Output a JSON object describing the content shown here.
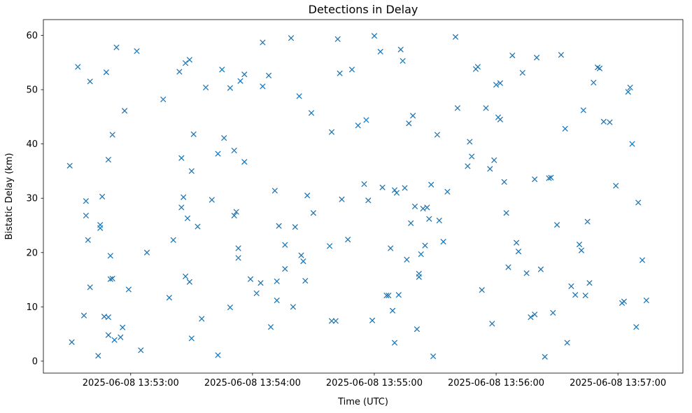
{
  "figure": {
    "title": "Detections in Delay"
  },
  "chart_data": {
    "type": "scatter",
    "title": "Detections in Delay",
    "xlabel": "Time (UTC)",
    "ylabel": "Bistatic Delay (km)",
    "marker": "x",
    "marker_color": "#1f77b4",
    "background_color": "#ffffff",
    "grid": false,
    "legend": false,
    "x_axis_note": "x values are seconds after 2025-06-08 13:50:00 UTC",
    "xlim": [
      137,
      452
    ],
    "ylim": [
      -2.2,
      62.9
    ],
    "x_ticks": [
      {
        "value": 180,
        "label": "2025-06-08 13:53:00"
      },
      {
        "value": 240,
        "label": "2025-06-08 13:54:00"
      },
      {
        "value": 300,
        "label": "2025-06-08 13:55:00"
      },
      {
        "value": 360,
        "label": "2025-06-08 13:56:00"
      },
      {
        "value": 420,
        "label": "2025-06-08 13:57:00"
      }
    ],
    "y_ticks": [
      0,
      10,
      20,
      30,
      40,
      50,
      60
    ],
    "points": [
      [
        150,
        36.0
      ],
      [
        151,
        3.5
      ],
      [
        154,
        54.2
      ],
      [
        157,
        8.4
      ],
      [
        158,
        29.5
      ],
      [
        158,
        26.8
      ],
      [
        159,
        22.3
      ],
      [
        160,
        51.5
      ],
      [
        160,
        13.6
      ],
      [
        164,
        1.0
      ],
      [
        165,
        25.1
      ],
      [
        165,
        24.5
      ],
      [
        166,
        30.3
      ],
      [
        167,
        8.2
      ],
      [
        168,
        53.2
      ],
      [
        169,
        8.1
      ],
      [
        169,
        4.8
      ],
      [
        169,
        37.1
      ],
      [
        170,
        19.4
      ],
      [
        170,
        15.1
      ],
      [
        171,
        15.2
      ],
      [
        171,
        41.7
      ],
      [
        172,
        3.9
      ],
      [
        173,
        57.8
      ],
      [
        175,
        4.4
      ],
      [
        176,
        6.2
      ],
      [
        177,
        46.1
      ],
      [
        179,
        13.2
      ],
      [
        183,
        57.1
      ],
      [
        185,
        2.0
      ],
      [
        188,
        20.0
      ],
      [
        196,
        48.2
      ],
      [
        199,
        11.7
      ],
      [
        201,
        22.3
      ],
      [
        204,
        53.3
      ],
      [
        205,
        37.4
      ],
      [
        205,
        28.3
      ],
      [
        206,
        30.2
      ],
      [
        207,
        15.6
      ],
      [
        207,
        54.9
      ],
      [
        208,
        26.3
      ],
      [
        209,
        55.5
      ],
      [
        209,
        14.6
      ],
      [
        210,
        35.0
      ],
      [
        210,
        4.2
      ],
      [
        211,
        41.8
      ],
      [
        213,
        24.8
      ],
      [
        215,
        7.8
      ],
      [
        217,
        50.4
      ],
      [
        220,
        29.7
      ],
      [
        223,
        38.2
      ],
      [
        223,
        1.1
      ],
      [
        225,
        53.7
      ],
      [
        226,
        41.1
      ],
      [
        229,
        50.3
      ],
      [
        229,
        9.9
      ],
      [
        231,
        38.8
      ],
      [
        231,
        26.8
      ],
      [
        232,
        27.5
      ],
      [
        233,
        19.0
      ],
      [
        233,
        20.8
      ],
      [
        234,
        51.6
      ],
      [
        236,
        52.8
      ],
      [
        236,
        36.7
      ],
      [
        239,
        15.1
      ],
      [
        242,
        12.5
      ],
      [
        244,
        14.4
      ],
      [
        245,
        58.7
      ],
      [
        245,
        50.6
      ],
      [
        248,
        52.6
      ],
      [
        249,
        6.3
      ],
      [
        251,
        31.4
      ],
      [
        252,
        11.2
      ],
      [
        252,
        14.7
      ],
      [
        253,
        24.9
      ],
      [
        256,
        17.0
      ],
      [
        256,
        21.4
      ],
      [
        259,
        59.5
      ],
      [
        260,
        10.0
      ],
      [
        261,
        24.7
      ],
      [
        263,
        48.8
      ],
      [
        264,
        19.5
      ],
      [
        265,
        18.4
      ],
      [
        266,
        14.8
      ],
      [
        267,
        30.5
      ],
      [
        269,
        45.7
      ],
      [
        270,
        27.3
      ],
      [
        278,
        21.2
      ],
      [
        279,
        42.2
      ],
      [
        279,
        7.4
      ],
      [
        281,
        7.4
      ],
      [
        282,
        59.3
      ],
      [
        283,
        53.0
      ],
      [
        284,
        29.8
      ],
      [
        287,
        22.4
      ],
      [
        289,
        53.7
      ],
      [
        292,
        43.4
      ],
      [
        295,
        32.6
      ],
      [
        296,
        44.4
      ],
      [
        297,
        29.6
      ],
      [
        299,
        7.5
      ],
      [
        300,
        59.9
      ],
      [
        303,
        57.0
      ],
      [
        304,
        32.0
      ],
      [
        306,
        12.1
      ],
      [
        307,
        12.1
      ],
      [
        308,
        20.8
      ],
      [
        309,
        9.3
      ],
      [
        310,
        31.5
      ],
      [
        310,
        3.4
      ],
      [
        311,
        31.0
      ],
      [
        312,
        12.2
      ],
      [
        313,
        57.4
      ],
      [
        314,
        55.3
      ],
      [
        315,
        31.9
      ],
      [
        316,
        18.7
      ],
      [
        317,
        43.8
      ],
      [
        318,
        25.4
      ],
      [
        319,
        45.2
      ],
      [
        320,
        28.5
      ],
      [
        321,
        5.9
      ],
      [
        322,
        15.5
      ],
      [
        322,
        16.1
      ],
      [
        323,
        19.7
      ],
      [
        324,
        28.1
      ],
      [
        325,
        21.3
      ],
      [
        326,
        28.3
      ],
      [
        327,
        26.2
      ],
      [
        328,
        32.5
      ],
      [
        329,
        0.9
      ],
      [
        331,
        41.7
      ],
      [
        332,
        25.9
      ],
      [
        334,
        22.0
      ],
      [
        336,
        31.2
      ],
      [
        340,
        59.7
      ],
      [
        341,
        46.6
      ],
      [
        346,
        35.9
      ],
      [
        347,
        40.4
      ],
      [
        348,
        37.7
      ],
      [
        350,
        53.8
      ],
      [
        351,
        54.2
      ],
      [
        353,
        13.1
      ],
      [
        355,
        46.6
      ],
      [
        357,
        35.4
      ],
      [
        358,
        6.9
      ],
      [
        359,
        37.0
      ],
      [
        360,
        50.9
      ],
      [
        361,
        44.9
      ],
      [
        362,
        51.2
      ],
      [
        362,
        44.5
      ],
      [
        364,
        33.0
      ],
      [
        365,
        27.3
      ],
      [
        366,
        17.3
      ],
      [
        368,
        56.3
      ],
      [
        370,
        21.8
      ],
      [
        371,
        20.2
      ],
      [
        373,
        53.1
      ],
      [
        375,
        16.2
      ],
      [
        377,
        8.1
      ],
      [
        379,
        8.6
      ],
      [
        379,
        33.5
      ],
      [
        380,
        55.9
      ],
      [
        382,
        16.9
      ],
      [
        384,
        0.8
      ],
      [
        386,
        33.7
      ],
      [
        387,
        33.8
      ],
      [
        388,
        8.9
      ],
      [
        390,
        25.1
      ],
      [
        392,
        56.4
      ],
      [
        394,
        42.8
      ],
      [
        395,
        3.4
      ],
      [
        397,
        13.8
      ],
      [
        399,
        12.2
      ],
      [
        401,
        21.5
      ],
      [
        402,
        20.4
      ],
      [
        403,
        46.2
      ],
      [
        404,
        12.1
      ],
      [
        405,
        25.7
      ],
      [
        406,
        14.4
      ],
      [
        408,
        51.3
      ],
      [
        410,
        54.1
      ],
      [
        411,
        53.9
      ],
      [
        413,
        44.1
      ],
      [
        416,
        44.0
      ],
      [
        419,
        32.3
      ],
      [
        422,
        10.7
      ],
      [
        423,
        11.0
      ],
      [
        425,
        49.6
      ],
      [
        426,
        50.4
      ],
      [
        427,
        40.0
      ],
      [
        429,
        6.3
      ],
      [
        430,
        29.2
      ],
      [
        432,
        18.6
      ],
      [
        434,
        11.2
      ]
    ]
  }
}
